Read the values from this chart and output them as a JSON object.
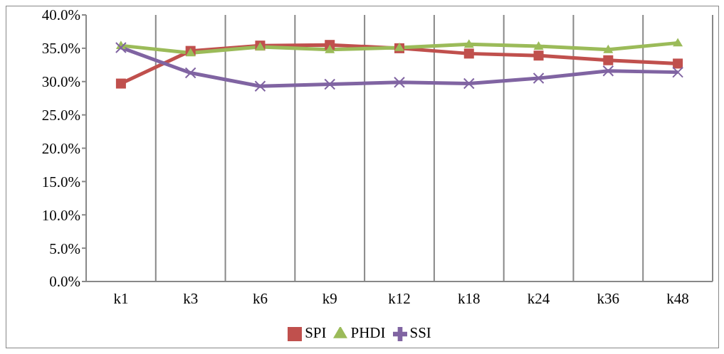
{
  "chart_data": {
    "type": "line",
    "categories": [
      "k1",
      "k3",
      "k6",
      "k9",
      "k12",
      "k18",
      "k24",
      "k36",
      "k48"
    ],
    "series": [
      {
        "name": "SPI",
        "color": "#c0504d",
        "marker": "square",
        "values": [
          29.7,
          34.6,
          35.4,
          35.5,
          35.0,
          34.2,
          33.9,
          33.2,
          32.7
        ]
      },
      {
        "name": "PHDI",
        "color": "#9bbb59",
        "marker": "triangle",
        "values": [
          35.4,
          34.3,
          35.2,
          34.8,
          35.1,
          35.6,
          35.3,
          34.8,
          35.8
        ]
      },
      {
        "name": "SSI",
        "color": "#8064a2",
        "marker": "cross",
        "values": [
          35.1,
          31.3,
          29.3,
          29.6,
          29.9,
          29.7,
          30.5,
          31.6,
          31.4
        ]
      }
    ],
    "ylim": [
      0,
      40
    ],
    "yticks": [
      {
        "value": 0,
        "label": "0.0%"
      },
      {
        "value": 5,
        "label": "5.0%"
      },
      {
        "value": 10,
        "label": "10.0%"
      },
      {
        "value": 15,
        "label": "15.0%"
      },
      {
        "value": 20,
        "label": "20.0%"
      },
      {
        "value": 25,
        "label": "25.0%"
      },
      {
        "value": 30,
        "label": "30.0%"
      },
      {
        "value": 35,
        "label": "35.0%"
      },
      {
        "value": 40,
        "label": "40.0%"
      }
    ],
    "grid": "x",
    "legend": "bottom"
  }
}
